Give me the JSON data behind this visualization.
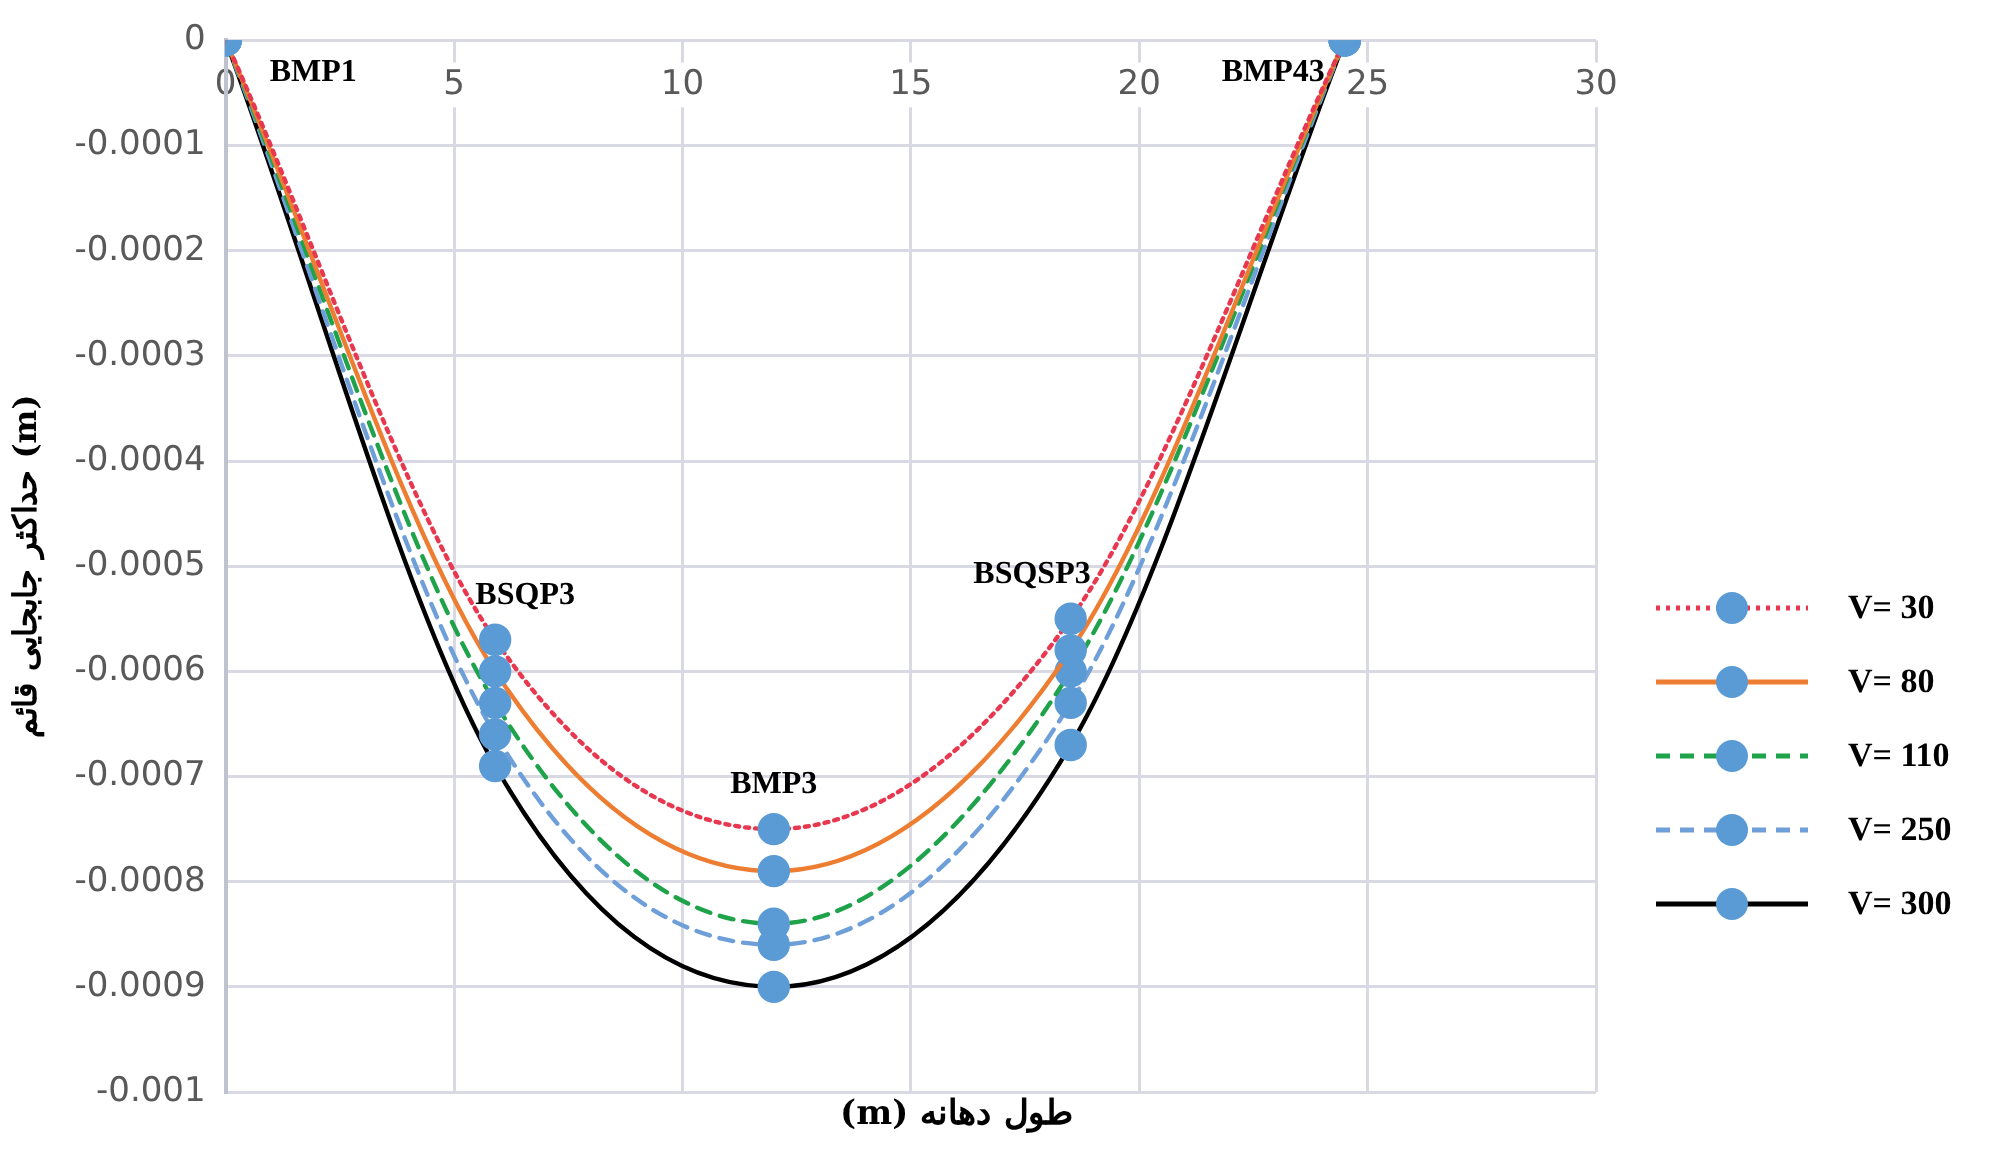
{
  "chart_data": {
    "type": "line",
    "xlabel": "طول دهانه (m)",
    "ylabel": "حداکثر جابجایی قائم (m)",
    "x": [
      0,
      5.9,
      12,
      18.5,
      24.5
    ],
    "series": [
      {
        "name": "V= 30",
        "color": "#e8384f",
        "line_style": "dotted",
        "values": [
          0,
          -0.00057,
          -0.00075,
          -0.00055,
          0
        ]
      },
      {
        "name": "V= 80",
        "color": "#ed7d31",
        "line_style": "solid",
        "values": [
          0,
          -0.0006,
          -0.00079,
          -0.00058,
          0
        ]
      },
      {
        "name": "V= 110",
        "color": "#1fa34a",
        "line_style": "dashed",
        "values": [
          0,
          -0.00063,
          -0.00084,
          -0.0006,
          0
        ]
      },
      {
        "name": "V= 250",
        "color": "#6f9fd8",
        "line_style": "dashed",
        "values": [
          0,
          -0.00066,
          -0.00086,
          -0.00063,
          0
        ]
      },
      {
        "name": "V= 300",
        "color": "#000000",
        "line_style": "solid",
        "values": [
          0,
          -0.00069,
          -0.0009,
          -0.00067,
          0
        ]
      }
    ],
    "xlim": [
      0,
      30
    ],
    "xticks": [
      0,
      5,
      10,
      15,
      20,
      25,
      30
    ],
    "ylim": [
      -0.001,
      0
    ],
    "yticks": [
      0,
      -0.0001,
      -0.0002,
      -0.0003,
      -0.0004,
      -0.0005,
      -0.0006,
      -0.0007,
      -0.0008,
      -0.0009,
      -0.001
    ],
    "grid": true,
    "legend": "right",
    "marker": "circle",
    "annotations": [
      {
        "text": "BMP1",
        "x": 0,
        "y": 0
      },
      {
        "text": "BSQP3",
        "x": 5.9,
        "y": -0.00057
      },
      {
        "text": "BMP3",
        "x": 12,
        "y": -0.00075
      },
      {
        "text": "BSQSP3",
        "x": 18.5,
        "y": -0.00055
      },
      {
        "text": "BMP43",
        "x": 24.5,
        "y": 0
      }
    ]
  }
}
